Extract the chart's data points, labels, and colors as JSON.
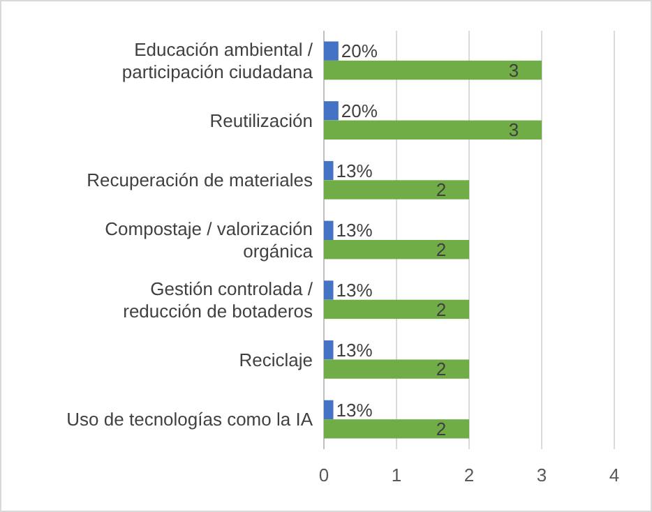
{
  "chart_data": {
    "type": "bar",
    "orientation": "horizontal",
    "categories": [
      "Educación ambiental / participación ciudadana",
      "Reutilización",
      "Recuperación de materiales",
      "Compostaje / valorización orgánica",
      "Gestión controlada / reducción de botaderos",
      "Reciclaje",
      "Uso de tecnologías como la IA"
    ],
    "series": [
      {
        "color": "#4472c4",
        "values": [
          0.2,
          0.2,
          0.13,
          0.13,
          0.13,
          0.13,
          0.13
        ],
        "value_labels": [
          "20%",
          "20%",
          "13%",
          "13%",
          "13%",
          "13%",
          "13%"
        ]
      },
      {
        "color": "#70ad47",
        "values": [
          3,
          3,
          2,
          2,
          2,
          2,
          2
        ],
        "value_labels": [
          "3",
          "3",
          "2",
          "2",
          "2",
          "2",
          "2"
        ]
      }
    ],
    "xlim": [
      0,
      4
    ],
    "xticks": [
      0,
      1,
      2,
      3,
      4
    ],
    "grid": "x"
  }
}
